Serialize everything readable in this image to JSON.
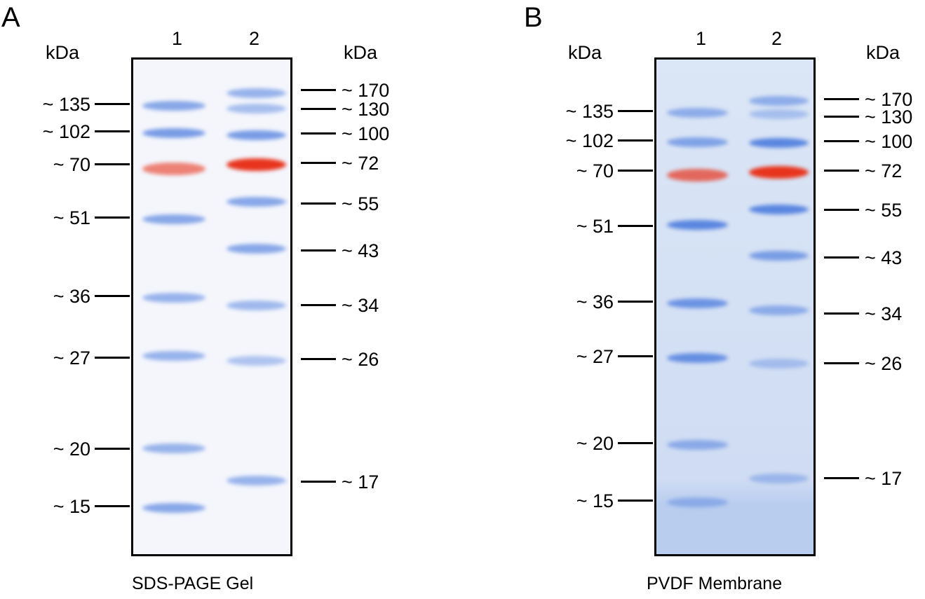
{
  "panels": [
    {
      "letter": "A",
      "unit_left": "kDa",
      "unit_right": "kDa",
      "lanes": [
        "1",
        "2"
      ],
      "caption": "SDS-PAGE Gel",
      "left_markers": [
        "~ 135",
        "~ 102",
        "~ 70",
        "~ 51",
        "~ 36",
        "~ 27",
        "~ 20",
        "~ 15"
      ],
      "right_markers": [
        "~ 170",
        "~ 130",
        "~ 100",
        "~ 72",
        "~ 55",
        "~ 43",
        "~ 34",
        "~ 26",
        "~ 17"
      ],
      "background": "#f4f6fc"
    },
    {
      "letter": "B",
      "unit_left": "kDa",
      "unit_right": "kDa",
      "lanes": [
        "1",
        "2"
      ],
      "caption": "PVDF Membrane",
      "left_markers": [
        "~ 135",
        "~ 102",
        "~ 70",
        "~ 51",
        "~ 36",
        "~ 27",
        "~ 20",
        "~ 15"
      ],
      "right_markers": [
        "~ 170",
        "~ 130",
        "~ 100",
        "~ 72",
        "~ 55",
        "~ 43",
        "~ 34",
        "~ 26",
        "~ 17"
      ],
      "background": "#d3e0f4"
    }
  ],
  "colors": {
    "blue_band": "#5a86e0",
    "red_band": "#e8341c"
  }
}
